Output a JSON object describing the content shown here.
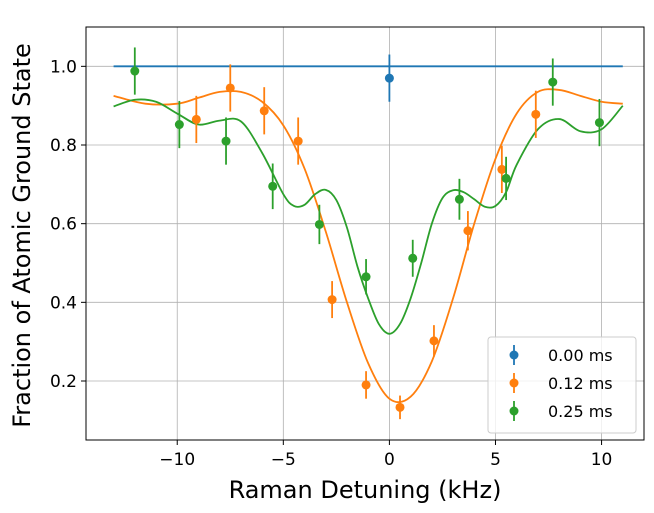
{
  "chart_data": {
    "type": "scatter",
    "title": "",
    "xlabel": "Raman Detuning (kHz)",
    "ylabel": "Fraction of Atomic Ground State",
    "xlim": [
      -14.3,
      12.0
    ],
    "ylim": [
      0.05,
      1.1
    ],
    "xticks": [
      -10,
      -5,
      0,
      5,
      10
    ],
    "xtick_labels": [
      "−10",
      "−5",
      "0",
      "5",
      "10"
    ],
    "yticks": [
      0.2,
      0.4,
      0.6,
      0.8,
      1.0
    ],
    "ytick_labels": [
      "0.2",
      "0.4",
      "0.6",
      "0.8",
      "1.0"
    ],
    "grid": true,
    "legend_position": "bottom-right",
    "series": [
      {
        "name": "0.00 ms",
        "color": "#1f77b4",
        "points": [
          {
            "x": 0.0,
            "y": 0.97,
            "err": 0.06
          }
        ],
        "fit": {
          "x": [
            -13.0,
            11.0
          ],
          "y": [
            1.0,
            1.0
          ]
        }
      },
      {
        "name": "0.12 ms",
        "color": "#ff7f0e",
        "points": [
          {
            "x": -9.1,
            "y": 0.865,
            "err": 0.06
          },
          {
            "x": -7.5,
            "y": 0.945,
            "err": 0.06
          },
          {
            "x": -5.9,
            "y": 0.887,
            "err": 0.06
          },
          {
            "x": -4.3,
            "y": 0.81,
            "err": 0.06
          },
          {
            "x": -2.7,
            "y": 0.407,
            "err": 0.047
          },
          {
            "x": -1.1,
            "y": 0.19,
            "err": 0.035
          },
          {
            "x": 0.5,
            "y": 0.133,
            "err": 0.03
          },
          {
            "x": 2.1,
            "y": 0.302,
            "err": 0.04
          },
          {
            "x": 3.7,
            "y": 0.582,
            "err": 0.05
          },
          {
            "x": 5.3,
            "y": 0.738,
            "err": 0.06
          },
          {
            "x": 6.9,
            "y": 0.878,
            "err": 0.06
          }
        ],
        "fit": {
          "x": [
            -13.0,
            -11.5,
            -10.0,
            -9.0,
            -8.0,
            -7.0,
            -6.0,
            -5.0,
            -4.0,
            -3.0,
            -2.0,
            -1.0,
            0.0,
            1.0,
            2.0,
            3.0,
            4.0,
            5.0,
            6.0,
            7.0,
            8.0,
            9.0,
            10.0,
            11.0
          ],
          "y": [
            0.925,
            0.905,
            0.905,
            0.92,
            0.935,
            0.935,
            0.91,
            0.85,
            0.74,
            0.58,
            0.4,
            0.245,
            0.155,
            0.16,
            0.25,
            0.41,
            0.6,
            0.765,
            0.88,
            0.935,
            0.94,
            0.925,
            0.91,
            0.905
          ]
        }
      },
      {
        "name": "0.25 ms",
        "color": "#2ca02c",
        "points": [
          {
            "x": -12.0,
            "y": 0.988,
            "err": 0.06
          },
          {
            "x": -9.9,
            "y": 0.852,
            "err": 0.06
          },
          {
            "x": -7.7,
            "y": 0.81,
            "err": 0.06
          },
          {
            "x": -5.5,
            "y": 0.695,
            "err": 0.058
          },
          {
            "x": -3.3,
            "y": 0.598,
            "err": 0.05
          },
          {
            "x": -1.1,
            "y": 0.465,
            "err": 0.045
          },
          {
            "x": 1.1,
            "y": 0.512,
            "err": 0.047
          },
          {
            "x": 3.3,
            "y": 0.662,
            "err": 0.052
          },
          {
            "x": 5.5,
            "y": 0.715,
            "err": 0.055
          },
          {
            "x": 7.7,
            "y": 0.96,
            "err": 0.06
          },
          {
            "x": 9.9,
            "y": 0.857,
            "err": 0.06
          }
        ],
        "fit": {
          "x": [
            -13.0,
            -12.0,
            -11.0,
            -10.0,
            -9.0,
            -8.0,
            -7.0,
            -6.0,
            -5.0,
            -4.5,
            -4.0,
            -3.5,
            -3.0,
            -2.5,
            -2.0,
            -1.5,
            -1.0,
            -0.5,
            0.0,
            0.5,
            1.0,
            1.5,
            2.0,
            2.5,
            3.0,
            3.5,
            4.0,
            4.5,
            5.0,
            5.5,
            6.0,
            7.0,
            8.0,
            9.0,
            10.0,
            11.0
          ],
          "y": [
            0.898,
            0.915,
            0.91,
            0.88,
            0.852,
            0.862,
            0.86,
            0.78,
            0.675,
            0.645,
            0.648,
            0.675,
            0.686,
            0.66,
            0.59,
            0.49,
            0.41,
            0.345,
            0.32,
            0.345,
            0.41,
            0.5,
            0.6,
            0.665,
            0.685,
            0.68,
            0.662,
            0.643,
            0.645,
            0.68,
            0.75,
            0.84,
            0.866,
            0.835,
            0.84,
            0.9
          ]
        }
      }
    ]
  }
}
